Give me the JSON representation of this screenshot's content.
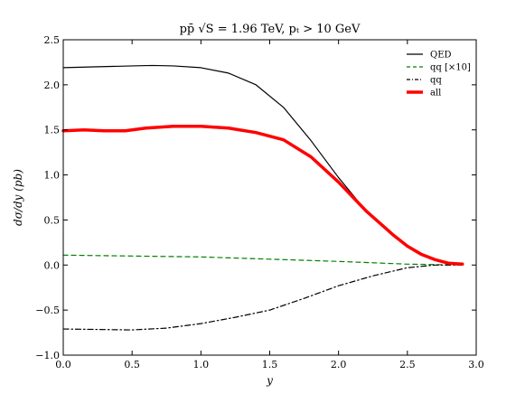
{
  "chart_data": {
    "type": "line",
    "title": "pp̄ √S = 1.96 TeV, pₜ > 10 GeV",
    "xlabel": "y",
    "ylabel": "dσ/dy (pb)",
    "xlim": [
      0.0,
      3.0
    ],
    "ylim": [
      -1.0,
      2.5
    ],
    "xticks": [
      "0.0",
      "0.5",
      "1.0",
      "1.5",
      "2.0",
      "2.5",
      "3.0"
    ],
    "yticks": [
      "−1.0",
      "−0.5",
      "0.0",
      "0.5",
      "1.0",
      "1.5",
      "2.0",
      "2.5"
    ],
    "legend_position": "top-right",
    "series": [
      {
        "name": "QED",
        "color": "#000000",
        "style": "solid",
        "x": [
          0.0,
          0.25,
          0.5,
          0.65,
          0.8,
          1.0,
          1.2,
          1.4,
          1.6,
          1.8,
          2.0,
          2.2,
          2.4,
          2.5,
          2.6,
          2.7,
          2.8,
          2.9
        ],
        "y": [
          2.19,
          2.2,
          2.21,
          2.215,
          2.21,
          2.19,
          2.13,
          2.0,
          1.75,
          1.38,
          0.97,
          0.6,
          0.32,
          0.2,
          0.11,
          0.05,
          0.02,
          0.01
        ]
      },
      {
        "name": "qq [×10]",
        "color": "#007f00",
        "style": "dashed",
        "x": [
          0.0,
          0.5,
          1.0,
          1.5,
          2.0,
          2.5,
          2.9
        ],
        "y": [
          0.11,
          0.1,
          0.09,
          0.065,
          0.04,
          0.01,
          0.0
        ]
      },
      {
        "name": "qq",
        "color": "#000000",
        "style": "dashdot",
        "x": [
          0.0,
          0.25,
          0.5,
          0.75,
          1.0,
          1.25,
          1.5,
          1.75,
          2.0,
          2.25,
          2.5,
          2.7,
          2.9
        ],
        "y": [
          -0.71,
          -0.715,
          -0.72,
          -0.7,
          -0.65,
          -0.58,
          -0.5,
          -0.37,
          -0.23,
          -0.12,
          -0.03,
          0.0,
          0.0
        ]
      },
      {
        "name": "all",
        "color": "#ff0000",
        "style": "solid-thick",
        "x": [
          0.0,
          0.15,
          0.3,
          0.45,
          0.6,
          0.8,
          1.0,
          1.2,
          1.4,
          1.6,
          1.8,
          2.0,
          2.2,
          2.4,
          2.5,
          2.6,
          2.7,
          2.8,
          2.9
        ],
        "y": [
          1.49,
          1.5,
          1.49,
          1.49,
          1.52,
          1.54,
          1.54,
          1.52,
          1.47,
          1.39,
          1.2,
          0.92,
          0.6,
          0.33,
          0.21,
          0.12,
          0.06,
          0.02,
          0.01
        ]
      }
    ]
  }
}
